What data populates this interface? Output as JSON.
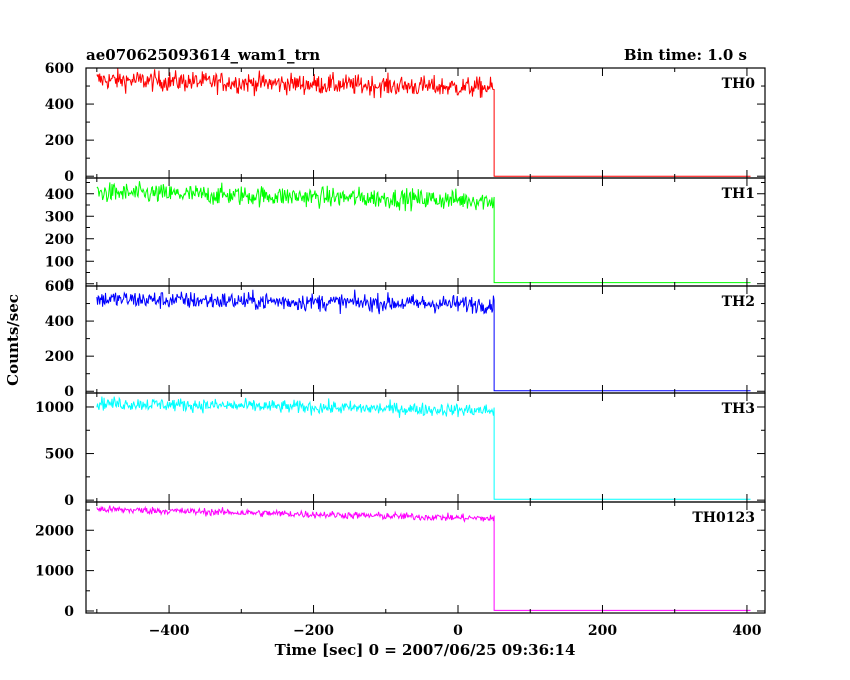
{
  "chart_data": {
    "type": "line",
    "title": "ae070625093614_wam1_trn",
    "subtitle": "Bin time: 1.0 s",
    "xlabel": "Time [sec] 0 = 2007/06/25 09:36:14",
    "ylabel": "Counts/sec",
    "xlim": [
      -515,
      425
    ],
    "x_ticks": [
      -400,
      -200,
      0,
      200,
      400
    ],
    "grid": false,
    "panels": [
      {
        "name": "TH0",
        "color": "#ff0000",
        "ylim": [
          -10,
          600
        ],
        "y_ticks": [
          0,
          200,
          400,
          600
        ],
        "series": {
          "x_start": -500,
          "x_end": 50,
          "y_start": 535,
          "y_end": 490,
          "noise": 28,
          "after_value": 0,
          "x_stop": 405
        }
      },
      {
        "name": "TH1",
        "color": "#00ff00",
        "ylim": [
          -10,
          470
        ],
        "y_ticks": [
          0,
          100,
          200,
          300,
          400
        ],
        "series": {
          "x_start": -500,
          "x_end": 50,
          "y_start": 405,
          "y_end": 370,
          "noise": 22,
          "after_value": 5,
          "x_stop": 405
        }
      },
      {
        "name": "TH2",
        "color": "#0000ff",
        "ylim": [
          -10,
          600
        ],
        "y_ticks": [
          0,
          200,
          400,
          600
        ],
        "series": {
          "x_start": -500,
          "x_end": 50,
          "y_start": 525,
          "y_end": 495,
          "noise": 25,
          "after_value": 3,
          "x_stop": 405
        }
      },
      {
        "name": "TH3",
        "color": "#00ffff",
        "ylim": [
          -20,
          1150
        ],
        "y_ticks": [
          0,
          500,
          1000
        ],
        "series": {
          "x_start": -500,
          "x_end": 50,
          "y_start": 1040,
          "y_end": 960,
          "noise": 35,
          "after_value": 10,
          "x_stop": 405
        }
      },
      {
        "name": "TH0123",
        "color": "#ff00ff",
        "ylim": [
          -50,
          2700
        ],
        "y_ticks": [
          0,
          1000,
          2000
        ],
        "series": {
          "x_start": -500,
          "x_end": 50,
          "y_start": 2520,
          "y_end": 2290,
          "noise": 45,
          "after_value": 15,
          "x_stop": 405
        }
      }
    ]
  }
}
